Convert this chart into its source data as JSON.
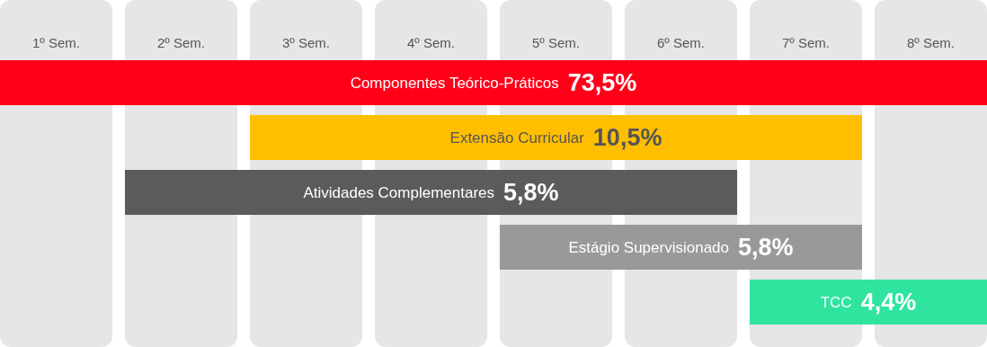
{
  "chart_data": {
    "type": "bar",
    "orientation": "horizontal",
    "tick_labels": "x",
    "categories": [
      "Componentes Teórico-Práticos",
      "Extensão Curricular",
      "Atividades Complementares",
      "Estágio Supervisionado",
      "TCC"
    ],
    "base": [
      0.55,
      2.55,
      1.55,
      4.55,
      6.55
    ],
    "values": [
      7.9,
      4.9,
      4.9,
      2.9,
      1.9
    ],
    "colors": [
      "#ff0019",
      "#ffbf00",
      "#5b5b5b",
      "#999999",
      "#2ee49f"
    ],
    "xlim": [
      0.55,
      8.45
    ],
    "xticks": [
      {
        "value": 1,
        "label": "1º Sem."
      },
      {
        "value": 2,
        "label": "2º Sem."
      },
      {
        "value": 3,
        "label": "3º Sem."
      },
      {
        "value": 4,
        "label": "4º Sem."
      },
      {
        "value": 5,
        "label": "5º Sem."
      },
      {
        "value": 6,
        "label": "6º Sem."
      },
      {
        "value": 7,
        "label": "7º Sem."
      },
      {
        "value": 8,
        "label": "8º Sem."
      }
    ],
    "bands": [
      {
        "axis": "x",
        "from": 0.55,
        "to": 1.45,
        "color": "#e6e6e6"
      },
      {
        "axis": "x",
        "from": 1.55,
        "to": 2.45,
        "color": "#e6e6e6"
      },
      {
        "axis": "x",
        "from": 2.55,
        "to": 3.45,
        "color": "#e6e6e6"
      },
      {
        "axis": "x",
        "from": 3.55,
        "to": 4.45,
        "color": "#e6e6e6"
      },
      {
        "axis": "x",
        "from": 4.55,
        "to": 5.45,
        "color": "#e6e6e6"
      },
      {
        "axis": "x",
        "from": 5.55,
        "to": 6.45,
        "color": "#e6e6e6"
      },
      {
        "axis": "x",
        "from": 6.55,
        "to": 7.45,
        "color": "#e6e6e6"
      },
      {
        "axis": "x",
        "from": 7.55,
        "to": 8.45,
        "color": "#e6e6e6"
      }
    ],
    "annotations": [
      "73,5%",
      "10,5%",
      "5,8%",
      "5,8%",
      "4,4%"
    ]
  }
}
